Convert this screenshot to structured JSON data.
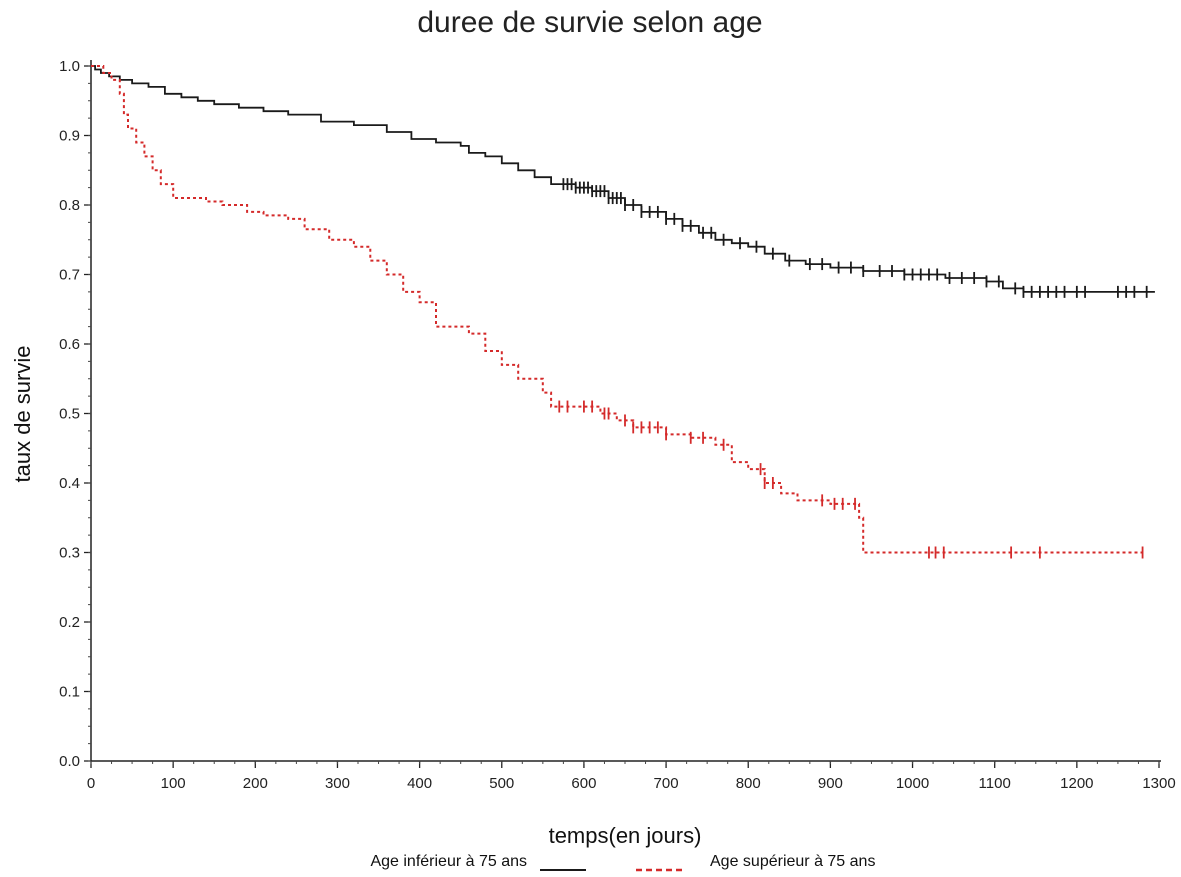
{
  "chart_data": {
    "type": "line",
    "title": "duree de survie selon age",
    "xlabel": "temps(en jours)",
    "ylabel": "taux de survie",
    "xlim": [
      0,
      1300
    ],
    "ylim": [
      0,
      1.0
    ],
    "xticks": [
      0,
      100,
      200,
      300,
      400,
      500,
      600,
      700,
      800,
      900,
      1000,
      1100,
      1200,
      1300
    ],
    "yticks": [
      0.0,
      0.1,
      0.2,
      0.3,
      0.4,
      0.5,
      0.6,
      0.7,
      0.8,
      0.9,
      1.0
    ],
    "ytick_labels": [
      "0.0",
      "0.1",
      "0.2",
      "0.3",
      "0.4",
      "0.5",
      "0.6",
      "0.7",
      "0.8",
      "0.9",
      "1.0"
    ],
    "grid": false,
    "legend_position": "bottom",
    "series": [
      {
        "name": "Age inférieur à 75 ans",
        "color": "#1a1a1a",
        "style": "solid",
        "steps": [
          [
            0,
            1.0
          ],
          [
            5,
            0.995
          ],
          [
            12,
            0.99
          ],
          [
            22,
            0.985
          ],
          [
            35,
            0.98
          ],
          [
            50,
            0.975
          ],
          [
            70,
            0.97
          ],
          [
            90,
            0.96
          ],
          [
            110,
            0.955
          ],
          [
            130,
            0.95
          ],
          [
            150,
            0.945
          ],
          [
            180,
            0.94
          ],
          [
            210,
            0.935
          ],
          [
            240,
            0.93
          ],
          [
            280,
            0.92
          ],
          [
            320,
            0.915
          ],
          [
            360,
            0.905
          ],
          [
            390,
            0.895
          ],
          [
            420,
            0.89
          ],
          [
            450,
            0.885
          ],
          [
            460,
            0.875
          ],
          [
            480,
            0.87
          ],
          [
            500,
            0.86
          ],
          [
            520,
            0.85
          ],
          [
            540,
            0.84
          ],
          [
            560,
            0.83
          ],
          [
            590,
            0.825
          ],
          [
            610,
            0.82
          ],
          [
            630,
            0.81
          ],
          [
            650,
            0.8
          ],
          [
            670,
            0.79
          ],
          [
            700,
            0.78
          ],
          [
            720,
            0.77
          ],
          [
            740,
            0.76
          ],
          [
            760,
            0.75
          ],
          [
            780,
            0.745
          ],
          [
            800,
            0.74
          ],
          [
            820,
            0.73
          ],
          [
            845,
            0.72
          ],
          [
            870,
            0.715
          ],
          [
            900,
            0.71
          ],
          [
            940,
            0.705
          ],
          [
            990,
            0.7
          ],
          [
            1040,
            0.695
          ],
          [
            1090,
            0.69
          ],
          [
            1110,
            0.68
          ],
          [
            1135,
            0.675
          ],
          [
            1295,
            0.675
          ]
        ],
        "censored": [
          575,
          580,
          585,
          590,
          595,
          600,
          605,
          610,
          615,
          620,
          625,
          630,
          635,
          640,
          645,
          650,
          660,
          670,
          680,
          690,
          700,
          710,
          720,
          730,
          745,
          755,
          770,
          790,
          810,
          830,
          850,
          875,
          890,
          910,
          925,
          940,
          960,
          975,
          990,
          1000,
          1010,
          1020,
          1030,
          1045,
          1060,
          1075,
          1090,
          1105,
          1125,
          1135,
          1145,
          1155,
          1165,
          1175,
          1185,
          1200,
          1210,
          1250,
          1260,
          1270,
          1285
        ]
      },
      {
        "name": "Age supérieur à 75 ans",
        "color": "#d42a2a",
        "style": "dotted",
        "steps": [
          [
            0,
            1.0
          ],
          [
            15,
            0.99
          ],
          [
            25,
            0.98
          ],
          [
            35,
            0.96
          ],
          [
            40,
            0.93
          ],
          [
            45,
            0.91
          ],
          [
            55,
            0.89
          ],
          [
            65,
            0.87
          ],
          [
            75,
            0.85
          ],
          [
            85,
            0.83
          ],
          [
            100,
            0.81
          ],
          [
            140,
            0.805
          ],
          [
            160,
            0.8
          ],
          [
            190,
            0.79
          ],
          [
            210,
            0.785
          ],
          [
            240,
            0.78
          ],
          [
            260,
            0.765
          ],
          [
            290,
            0.75
          ],
          [
            320,
            0.74
          ],
          [
            340,
            0.72
          ],
          [
            360,
            0.7
          ],
          [
            380,
            0.675
          ],
          [
            400,
            0.66
          ],
          [
            420,
            0.625
          ],
          [
            460,
            0.615
          ],
          [
            480,
            0.59
          ],
          [
            500,
            0.57
          ],
          [
            520,
            0.55
          ],
          [
            550,
            0.53
          ],
          [
            560,
            0.51
          ],
          [
            620,
            0.5
          ],
          [
            640,
            0.49
          ],
          [
            660,
            0.48
          ],
          [
            700,
            0.47
          ],
          [
            730,
            0.465
          ],
          [
            760,
            0.455
          ],
          [
            780,
            0.43
          ],
          [
            800,
            0.42
          ],
          [
            820,
            0.4
          ],
          [
            840,
            0.385
          ],
          [
            860,
            0.375
          ],
          [
            900,
            0.37
          ],
          [
            935,
            0.35
          ],
          [
            940,
            0.3
          ],
          [
            1280,
            0.3
          ]
        ],
        "censored": [
          570,
          580,
          600,
          610,
          625,
          630,
          650,
          660,
          670,
          680,
          690,
          700,
          730,
          745,
          770,
          815,
          820,
          830,
          890,
          905,
          915,
          930,
          1020,
          1028,
          1038,
          1120,
          1155,
          1280
        ]
      }
    ]
  }
}
